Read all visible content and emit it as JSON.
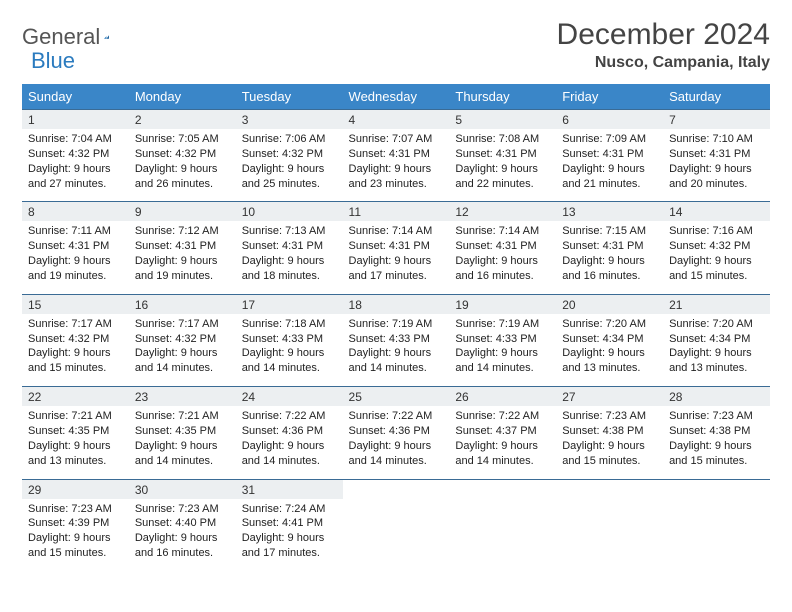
{
  "brand": {
    "part1": "General",
    "part2": "Blue"
  },
  "title": "December 2024",
  "location": "Nusco, Campania, Italy",
  "colors": {
    "header_bg": "#3a86c8",
    "header_text": "#ffffff",
    "daynum_bg": "#eceff1",
    "rule": "#3a6b95",
    "brand_blue": "#2b7bbf",
    "brand_gray": "#555555"
  },
  "weekdays": [
    "Sunday",
    "Monday",
    "Tuesday",
    "Wednesday",
    "Thursday",
    "Friday",
    "Saturday"
  ],
  "weeks": [
    [
      {
        "n": "1",
        "sr": "7:04 AM",
        "ss": "4:32 PM",
        "dl": "9 hours and 27 minutes."
      },
      {
        "n": "2",
        "sr": "7:05 AM",
        "ss": "4:32 PM",
        "dl": "9 hours and 26 minutes."
      },
      {
        "n": "3",
        "sr": "7:06 AM",
        "ss": "4:32 PM",
        "dl": "9 hours and 25 minutes."
      },
      {
        "n": "4",
        "sr": "7:07 AM",
        "ss": "4:31 PM",
        "dl": "9 hours and 23 minutes."
      },
      {
        "n": "5",
        "sr": "7:08 AM",
        "ss": "4:31 PM",
        "dl": "9 hours and 22 minutes."
      },
      {
        "n": "6",
        "sr": "7:09 AM",
        "ss": "4:31 PM",
        "dl": "9 hours and 21 minutes."
      },
      {
        "n": "7",
        "sr": "7:10 AM",
        "ss": "4:31 PM",
        "dl": "9 hours and 20 minutes."
      }
    ],
    [
      {
        "n": "8",
        "sr": "7:11 AM",
        "ss": "4:31 PM",
        "dl": "9 hours and 19 minutes."
      },
      {
        "n": "9",
        "sr": "7:12 AM",
        "ss": "4:31 PM",
        "dl": "9 hours and 19 minutes."
      },
      {
        "n": "10",
        "sr": "7:13 AM",
        "ss": "4:31 PM",
        "dl": "9 hours and 18 minutes."
      },
      {
        "n": "11",
        "sr": "7:14 AM",
        "ss": "4:31 PM",
        "dl": "9 hours and 17 minutes."
      },
      {
        "n": "12",
        "sr": "7:14 AM",
        "ss": "4:31 PM",
        "dl": "9 hours and 16 minutes."
      },
      {
        "n": "13",
        "sr": "7:15 AM",
        "ss": "4:31 PM",
        "dl": "9 hours and 16 minutes."
      },
      {
        "n": "14",
        "sr": "7:16 AM",
        "ss": "4:32 PM",
        "dl": "9 hours and 15 minutes."
      }
    ],
    [
      {
        "n": "15",
        "sr": "7:17 AM",
        "ss": "4:32 PM",
        "dl": "9 hours and 15 minutes."
      },
      {
        "n": "16",
        "sr": "7:17 AM",
        "ss": "4:32 PM",
        "dl": "9 hours and 14 minutes."
      },
      {
        "n": "17",
        "sr": "7:18 AM",
        "ss": "4:33 PM",
        "dl": "9 hours and 14 minutes."
      },
      {
        "n": "18",
        "sr": "7:19 AM",
        "ss": "4:33 PM",
        "dl": "9 hours and 14 minutes."
      },
      {
        "n": "19",
        "sr": "7:19 AM",
        "ss": "4:33 PM",
        "dl": "9 hours and 14 minutes."
      },
      {
        "n": "20",
        "sr": "7:20 AM",
        "ss": "4:34 PM",
        "dl": "9 hours and 13 minutes."
      },
      {
        "n": "21",
        "sr": "7:20 AM",
        "ss": "4:34 PM",
        "dl": "9 hours and 13 minutes."
      }
    ],
    [
      {
        "n": "22",
        "sr": "7:21 AM",
        "ss": "4:35 PM",
        "dl": "9 hours and 13 minutes."
      },
      {
        "n": "23",
        "sr": "7:21 AM",
        "ss": "4:35 PM",
        "dl": "9 hours and 14 minutes."
      },
      {
        "n": "24",
        "sr": "7:22 AM",
        "ss": "4:36 PM",
        "dl": "9 hours and 14 minutes."
      },
      {
        "n": "25",
        "sr": "7:22 AM",
        "ss": "4:36 PM",
        "dl": "9 hours and 14 minutes."
      },
      {
        "n": "26",
        "sr": "7:22 AM",
        "ss": "4:37 PM",
        "dl": "9 hours and 14 minutes."
      },
      {
        "n": "27",
        "sr": "7:23 AM",
        "ss": "4:38 PM",
        "dl": "9 hours and 15 minutes."
      },
      {
        "n": "28",
        "sr": "7:23 AM",
        "ss": "4:38 PM",
        "dl": "9 hours and 15 minutes."
      }
    ],
    [
      {
        "n": "29",
        "sr": "7:23 AM",
        "ss": "4:39 PM",
        "dl": "9 hours and 15 minutes."
      },
      {
        "n": "30",
        "sr": "7:23 AM",
        "ss": "4:40 PM",
        "dl": "9 hours and 16 minutes."
      },
      {
        "n": "31",
        "sr": "7:24 AM",
        "ss": "4:41 PM",
        "dl": "9 hours and 17 minutes."
      },
      null,
      null,
      null,
      null
    ]
  ],
  "labels": {
    "sunrise": "Sunrise: ",
    "sunset": "Sunset: ",
    "daylight": "Daylight: "
  }
}
